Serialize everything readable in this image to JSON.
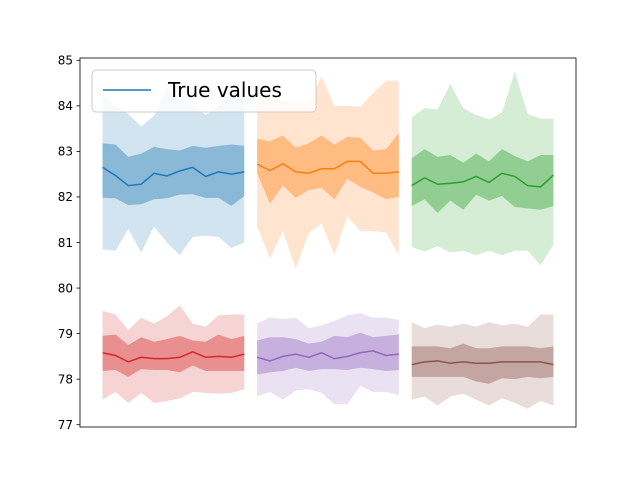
{
  "chart_data": {
    "type": "line",
    "title": "",
    "xlabel": "",
    "ylabel": "",
    "ylim": [
      76.95,
      85.05
    ],
    "yticks": [
      77,
      78,
      79,
      80,
      81,
      82,
      83,
      84,
      85
    ],
    "xticks_visible": false,
    "legend": {
      "position": "upper-left",
      "entries": [
        "True values"
      ]
    },
    "series": [
      {
        "name": "True values",
        "color": "#1f77b4",
        "x": [
          0,
          1,
          2,
          3,
          4,
          5,
          6,
          7,
          8,
          9,
          10,
          11
        ],
        "mean": [
          82.65,
          82.47,
          82.25,
          82.28,
          82.52,
          82.46,
          82.57,
          82.65,
          82.45,
          82.55,
          82.5,
          82.55
        ],
        "inner_lo": [
          81.98,
          81.97,
          81.82,
          81.84,
          81.95,
          81.97,
          82.05,
          82.06,
          81.98,
          81.98,
          81.8,
          82.02
        ],
        "inner_hi": [
          83.18,
          83.15,
          82.88,
          82.95,
          83.1,
          83.05,
          83.02,
          83.12,
          83.08,
          83.12,
          83.15,
          83.12
        ],
        "outer_lo": [
          80.85,
          80.82,
          81.3,
          80.78,
          81.35,
          81.0,
          80.72,
          81.12,
          81.15,
          81.12,
          80.88,
          81.0
        ],
        "outer_hi": [
          84.22,
          84.0,
          83.82,
          83.55,
          83.78,
          84.38,
          84.05,
          84.05,
          83.8,
          84.0,
          84.22,
          84.38
        ]
      },
      {
        "color": "#ff7f0e",
        "x": [
          12,
          13,
          14,
          15,
          16,
          17,
          18,
          19,
          20,
          21,
          22,
          23
        ],
        "mean": [
          82.72,
          82.58,
          82.73,
          82.55,
          82.52,
          82.62,
          82.62,
          82.78,
          82.78,
          82.52,
          82.52,
          82.55
        ],
        "inner_lo": [
          82.52,
          81.85,
          82.25,
          81.98,
          82.15,
          82.2,
          81.95,
          82.4,
          82.22,
          82.1,
          81.95,
          82.0
        ],
        "inner_hi": [
          83.28,
          83.22,
          83.35,
          83.08,
          83.18,
          83.35,
          83.15,
          83.32,
          83.3,
          83.02,
          83.05,
          83.4
        ],
        "outer_lo": [
          81.35,
          80.65,
          81.25,
          80.42,
          81.2,
          81.42,
          80.72,
          81.58,
          81.25,
          81.25,
          81.22,
          80.72
        ],
        "outer_hi": [
          84.05,
          84.2,
          84.12,
          84.08,
          84.05,
          84.65,
          84.0,
          84.0,
          83.98,
          84.28,
          84.55,
          84.55
        ]
      },
      {
        "color": "#2ca02c",
        "x": [
          24,
          25,
          26,
          27,
          28,
          29,
          30,
          31,
          32,
          33,
          34,
          35
        ],
        "mean": [
          82.25,
          82.42,
          82.28,
          82.3,
          82.33,
          82.45,
          82.32,
          82.52,
          82.45,
          82.25,
          82.22,
          82.48
        ],
        "inner_lo": [
          81.8,
          81.95,
          81.65,
          81.92,
          81.72,
          82.05,
          81.92,
          82.02,
          81.78,
          81.75,
          81.72,
          81.8
        ],
        "inner_hi": [
          82.85,
          83.05,
          82.88,
          82.92,
          82.75,
          82.95,
          82.78,
          83.05,
          82.9,
          82.78,
          82.92,
          82.92
        ],
        "outer_lo": [
          80.9,
          80.8,
          80.92,
          80.78,
          80.82,
          80.72,
          80.82,
          80.72,
          80.82,
          80.82,
          80.5,
          80.95
        ],
        "outer_hi": [
          83.75,
          83.95,
          83.92,
          84.48,
          83.95,
          83.8,
          83.7,
          83.85,
          84.75,
          83.82,
          83.72,
          83.72
        ]
      },
      {
        "color": "#d62728",
        "x": [
          0,
          1,
          2,
          3,
          4,
          5,
          6,
          7,
          8,
          9,
          10,
          11
        ],
        "mean": [
          78.58,
          78.52,
          78.38,
          78.48,
          78.45,
          78.45,
          78.48,
          78.6,
          78.48,
          78.5,
          78.48,
          78.55
        ],
        "inner_lo": [
          78.18,
          78.2,
          78.05,
          78.22,
          78.2,
          78.2,
          78.15,
          78.3,
          78.18,
          78.18,
          78.18,
          78.18
        ],
        "inner_hi": [
          78.95,
          78.98,
          78.75,
          78.92,
          78.82,
          78.88,
          78.95,
          78.85,
          78.82,
          78.98,
          78.88,
          78.95
        ],
        "outer_lo": [
          77.55,
          77.72,
          77.48,
          77.7,
          77.48,
          77.52,
          77.58,
          77.72,
          77.7,
          77.68,
          77.7,
          77.78
        ],
        "outer_hi": [
          79.5,
          79.42,
          79.08,
          79.35,
          79.22,
          79.38,
          79.62,
          79.22,
          79.15,
          79.4,
          79.42,
          79.42
        ]
      },
      {
        "color": "#9467bd",
        "x": [
          12,
          13,
          14,
          15,
          16,
          17,
          18,
          19,
          20,
          21,
          22,
          23
        ],
        "mean": [
          78.48,
          78.4,
          78.5,
          78.55,
          78.48,
          78.58,
          78.45,
          78.5,
          78.58,
          78.62,
          78.52,
          78.55
        ],
        "inner_lo": [
          78.1,
          78.15,
          78.18,
          78.25,
          78.18,
          78.22,
          78.22,
          78.2,
          78.25,
          78.22,
          78.18,
          78.2
        ],
        "inner_hi": [
          78.85,
          78.92,
          78.92,
          78.88,
          78.78,
          78.82,
          78.95,
          78.92,
          79.02,
          78.92,
          78.95,
          78.98
        ],
        "outer_lo": [
          77.62,
          77.72,
          77.55,
          77.75,
          77.78,
          77.7,
          77.45,
          77.45,
          77.85,
          77.72,
          77.72,
          77.65
        ],
        "outer_hi": [
          79.22,
          79.35,
          79.32,
          79.35,
          79.12,
          79.18,
          79.28,
          79.4,
          79.45,
          79.35,
          79.35,
          79.3
        ]
      },
      {
        "color": "#8c564b",
        "x": [
          24,
          25,
          26,
          27,
          28,
          29,
          30,
          31,
          32,
          33,
          34,
          35
        ],
        "mean": [
          78.32,
          78.38,
          78.4,
          78.35,
          78.38,
          78.35,
          78.35,
          78.38,
          78.38,
          78.38,
          78.38,
          78.32
        ],
        "inner_lo": [
          78.05,
          78.05,
          78.05,
          78.05,
          78.05,
          77.95,
          77.9,
          78.02,
          78.0,
          78.05,
          78.02,
          78.05
        ],
        "inner_hi": [
          78.72,
          78.72,
          78.72,
          78.68,
          78.78,
          78.68,
          78.68,
          78.72,
          78.72,
          78.72,
          78.68,
          78.72
        ],
        "outer_lo": [
          77.55,
          77.62,
          77.42,
          77.62,
          77.68,
          77.55,
          77.42,
          77.58,
          77.48,
          77.35,
          77.52,
          77.42
        ],
        "outer_hi": [
          79.25,
          79.12,
          79.2,
          79.15,
          79.22,
          79.15,
          79.25,
          79.18,
          79.22,
          79.15,
          79.42,
          79.42
        ]
      }
    ]
  }
}
